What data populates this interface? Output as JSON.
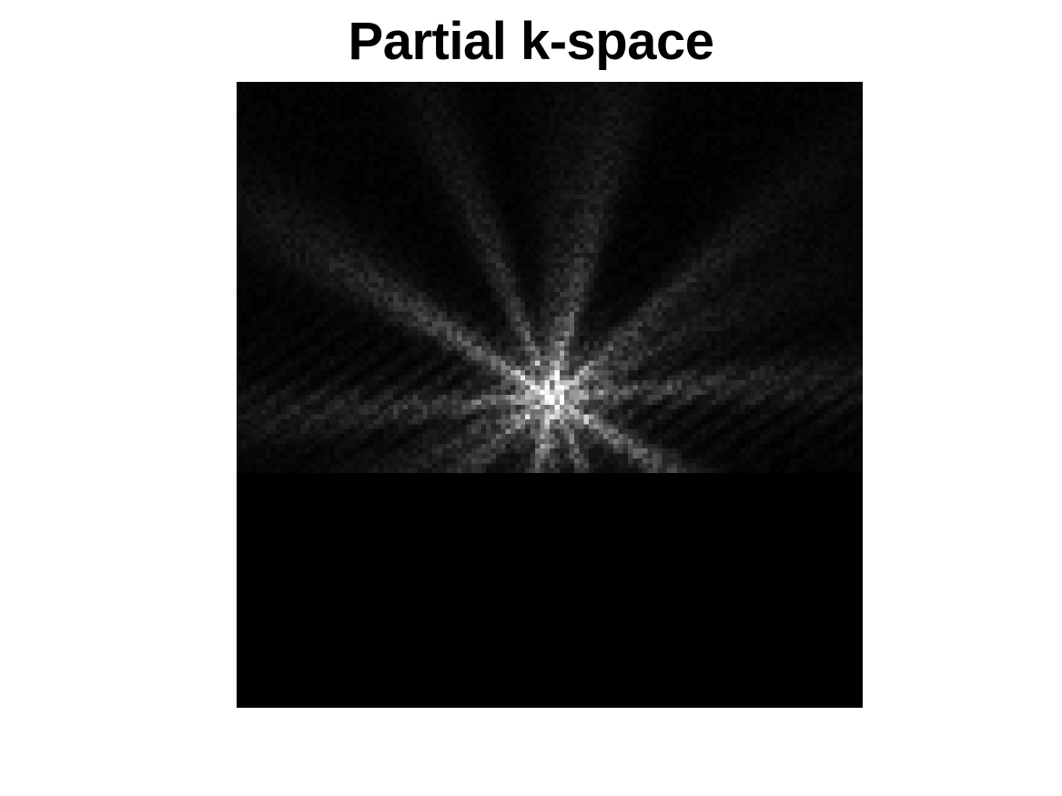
{
  "figure": {
    "title": "Partial k-space"
  },
  "image": {
    "description_kind": "grayscale k-space magnitude",
    "colormap": "gray",
    "background_color": "#000000",
    "sampled_fraction": 0.625,
    "unsampled_region": "bottom"
  }
}
